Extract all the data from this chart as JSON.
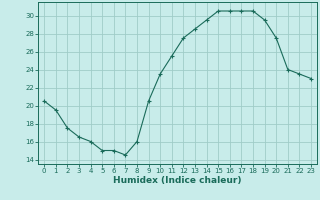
{
  "x": [
    0,
    1,
    2,
    3,
    4,
    5,
    6,
    7,
    8,
    9,
    10,
    11,
    12,
    13,
    14,
    15,
    16,
    17,
    18,
    19,
    20,
    21,
    22,
    23
  ],
  "y": [
    20.5,
    19.5,
    17.5,
    16.5,
    16.0,
    15.0,
    15.0,
    14.5,
    16.0,
    20.5,
    23.5,
    25.5,
    27.5,
    28.5,
    29.5,
    30.5,
    30.5,
    30.5,
    30.5,
    29.5,
    27.5,
    24.0,
    23.5,
    23.0
  ],
  "xlabel": "Humidex (Indice chaleur)",
  "line_color": "#1a6b5a",
  "marker": "+",
  "bg_color": "#c8ecea",
  "grid_color": "#a0ccc8",
  "ylim": [
    13.5,
    31.5
  ],
  "xlim": [
    -0.5,
    23.5
  ],
  "yticks": [
    14,
    16,
    18,
    20,
    22,
    24,
    26,
    28,
    30
  ],
  "xticks": [
    0,
    1,
    2,
    3,
    4,
    5,
    6,
    7,
    8,
    9,
    10,
    11,
    12,
    13,
    14,
    15,
    16,
    17,
    18,
    19,
    20,
    21,
    22,
    23
  ],
  "tick_color": "#1a6b5a",
  "axis_color": "#1a6b5a",
  "font_color": "#1a6b5a",
  "tick_fontsize": 5,
  "xlabel_fontsize": 6.5
}
